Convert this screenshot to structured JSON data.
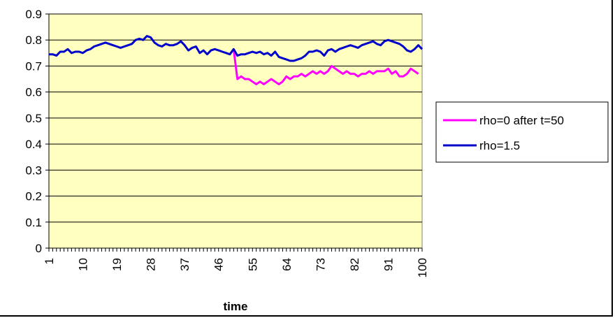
{
  "chart_data": {
    "type": "line",
    "title": "",
    "xlabel": "time",
    "ylabel": "",
    "ylim": [
      0,
      0.9
    ],
    "yticks": [
      0,
      0.1,
      0.2,
      0.3,
      0.4,
      0.5,
      0.6,
      0.7,
      0.8,
      0.9
    ],
    "ytick_labels": [
      "0",
      "0.1",
      "0.2",
      "0.3",
      "0.4",
      "0.5",
      "0.6",
      "0.7",
      "0.8",
      "0.9"
    ],
    "xlim": [
      1,
      100
    ],
    "xtick_labels": [
      "1",
      "10",
      "19",
      "28",
      "37",
      "46",
      "55",
      "64",
      "73",
      "82",
      "91",
      "100"
    ],
    "grid": "horizontal",
    "legend_position": "right",
    "plot_background": "#ffffc0",
    "series": [
      {
        "name": "rho=0 after t=50",
        "color": "#ff00ff",
        "x_start": 50,
        "values": [
          0.765,
          0.65,
          0.66,
          0.65,
          0.65,
          0.64,
          0.63,
          0.64,
          0.63,
          0.64,
          0.65,
          0.64,
          0.63,
          0.64,
          0.66,
          0.65,
          0.66,
          0.66,
          0.67,
          0.66,
          0.67,
          0.68,
          0.67,
          0.68,
          0.67,
          0.68,
          0.7,
          0.69,
          0.68,
          0.67,
          0.68,
          0.67,
          0.67,
          0.66,
          0.67,
          0.67,
          0.68,
          0.67,
          0.68,
          0.68,
          0.68,
          0.69,
          0.67,
          0.68,
          0.66,
          0.66,
          0.67,
          0.69,
          0.68,
          0.67
        ]
      },
      {
        "name": "rho=1.5",
        "color": "#0000cc",
        "x_start": 1,
        "values": [
          0.745,
          0.745,
          0.74,
          0.755,
          0.755,
          0.765,
          0.75,
          0.755,
          0.755,
          0.75,
          0.76,
          0.765,
          0.775,
          0.78,
          0.785,
          0.79,
          0.785,
          0.78,
          0.775,
          0.77,
          0.775,
          0.78,
          0.785,
          0.8,
          0.805,
          0.8,
          0.815,
          0.81,
          0.79,
          0.78,
          0.775,
          0.785,
          0.78,
          0.78,
          0.785,
          0.795,
          0.78,
          0.76,
          0.77,
          0.775,
          0.75,
          0.76,
          0.745,
          0.76,
          0.765,
          0.76,
          0.755,
          0.75,
          0.745,
          0.765,
          0.74,
          0.745,
          0.745,
          0.75,
          0.755,
          0.75,
          0.755,
          0.745,
          0.75,
          0.74,
          0.755,
          0.735,
          0.73,
          0.725,
          0.72,
          0.72,
          0.725,
          0.73,
          0.74,
          0.755,
          0.755,
          0.76,
          0.755,
          0.74,
          0.76,
          0.765,
          0.755,
          0.765,
          0.77,
          0.775,
          0.78,
          0.775,
          0.77,
          0.78,
          0.785,
          0.79,
          0.795,
          0.785,
          0.78,
          0.795,
          0.8,
          0.795,
          0.79,
          0.785,
          0.775,
          0.76,
          0.755,
          0.765,
          0.78,
          0.765
        ]
      }
    ]
  }
}
